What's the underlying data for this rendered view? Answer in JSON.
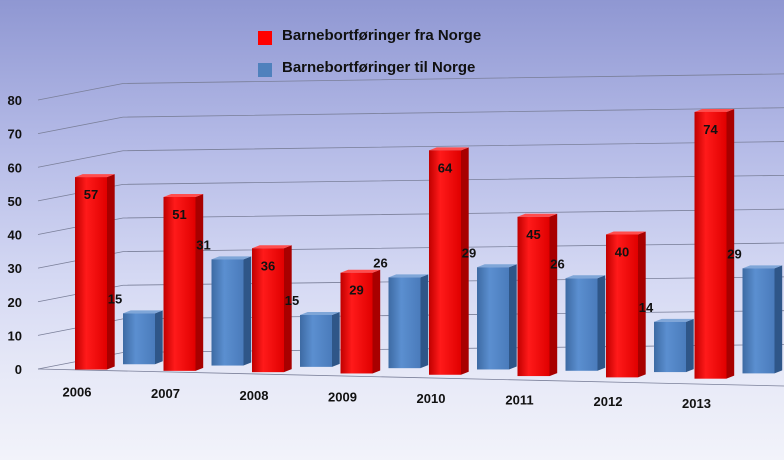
{
  "chart_data": {
    "type": "bar",
    "categories": [
      "2006",
      "2007",
      "2008",
      "2009",
      "2010",
      "2011",
      "2012",
      "2013"
    ],
    "series": [
      {
        "name": "Barnebortføringer fra Norge",
        "values": [
          57,
          51,
          36,
          29,
          64,
          45,
          40,
          74
        ],
        "color": "#ff0000"
      },
      {
        "name": "Barnebortføringer til Norge",
        "values": [
          15,
          31,
          15,
          26,
          29,
          26,
          14,
          29
        ],
        "color": "#4f81bd"
      }
    ],
    "ylim": [
      0,
      80
    ],
    "yticks": [
      0,
      10,
      20,
      30,
      40,
      50,
      60,
      70,
      80
    ],
    "grid": true,
    "legend_position": "top-center",
    "data_labels": true
  }
}
